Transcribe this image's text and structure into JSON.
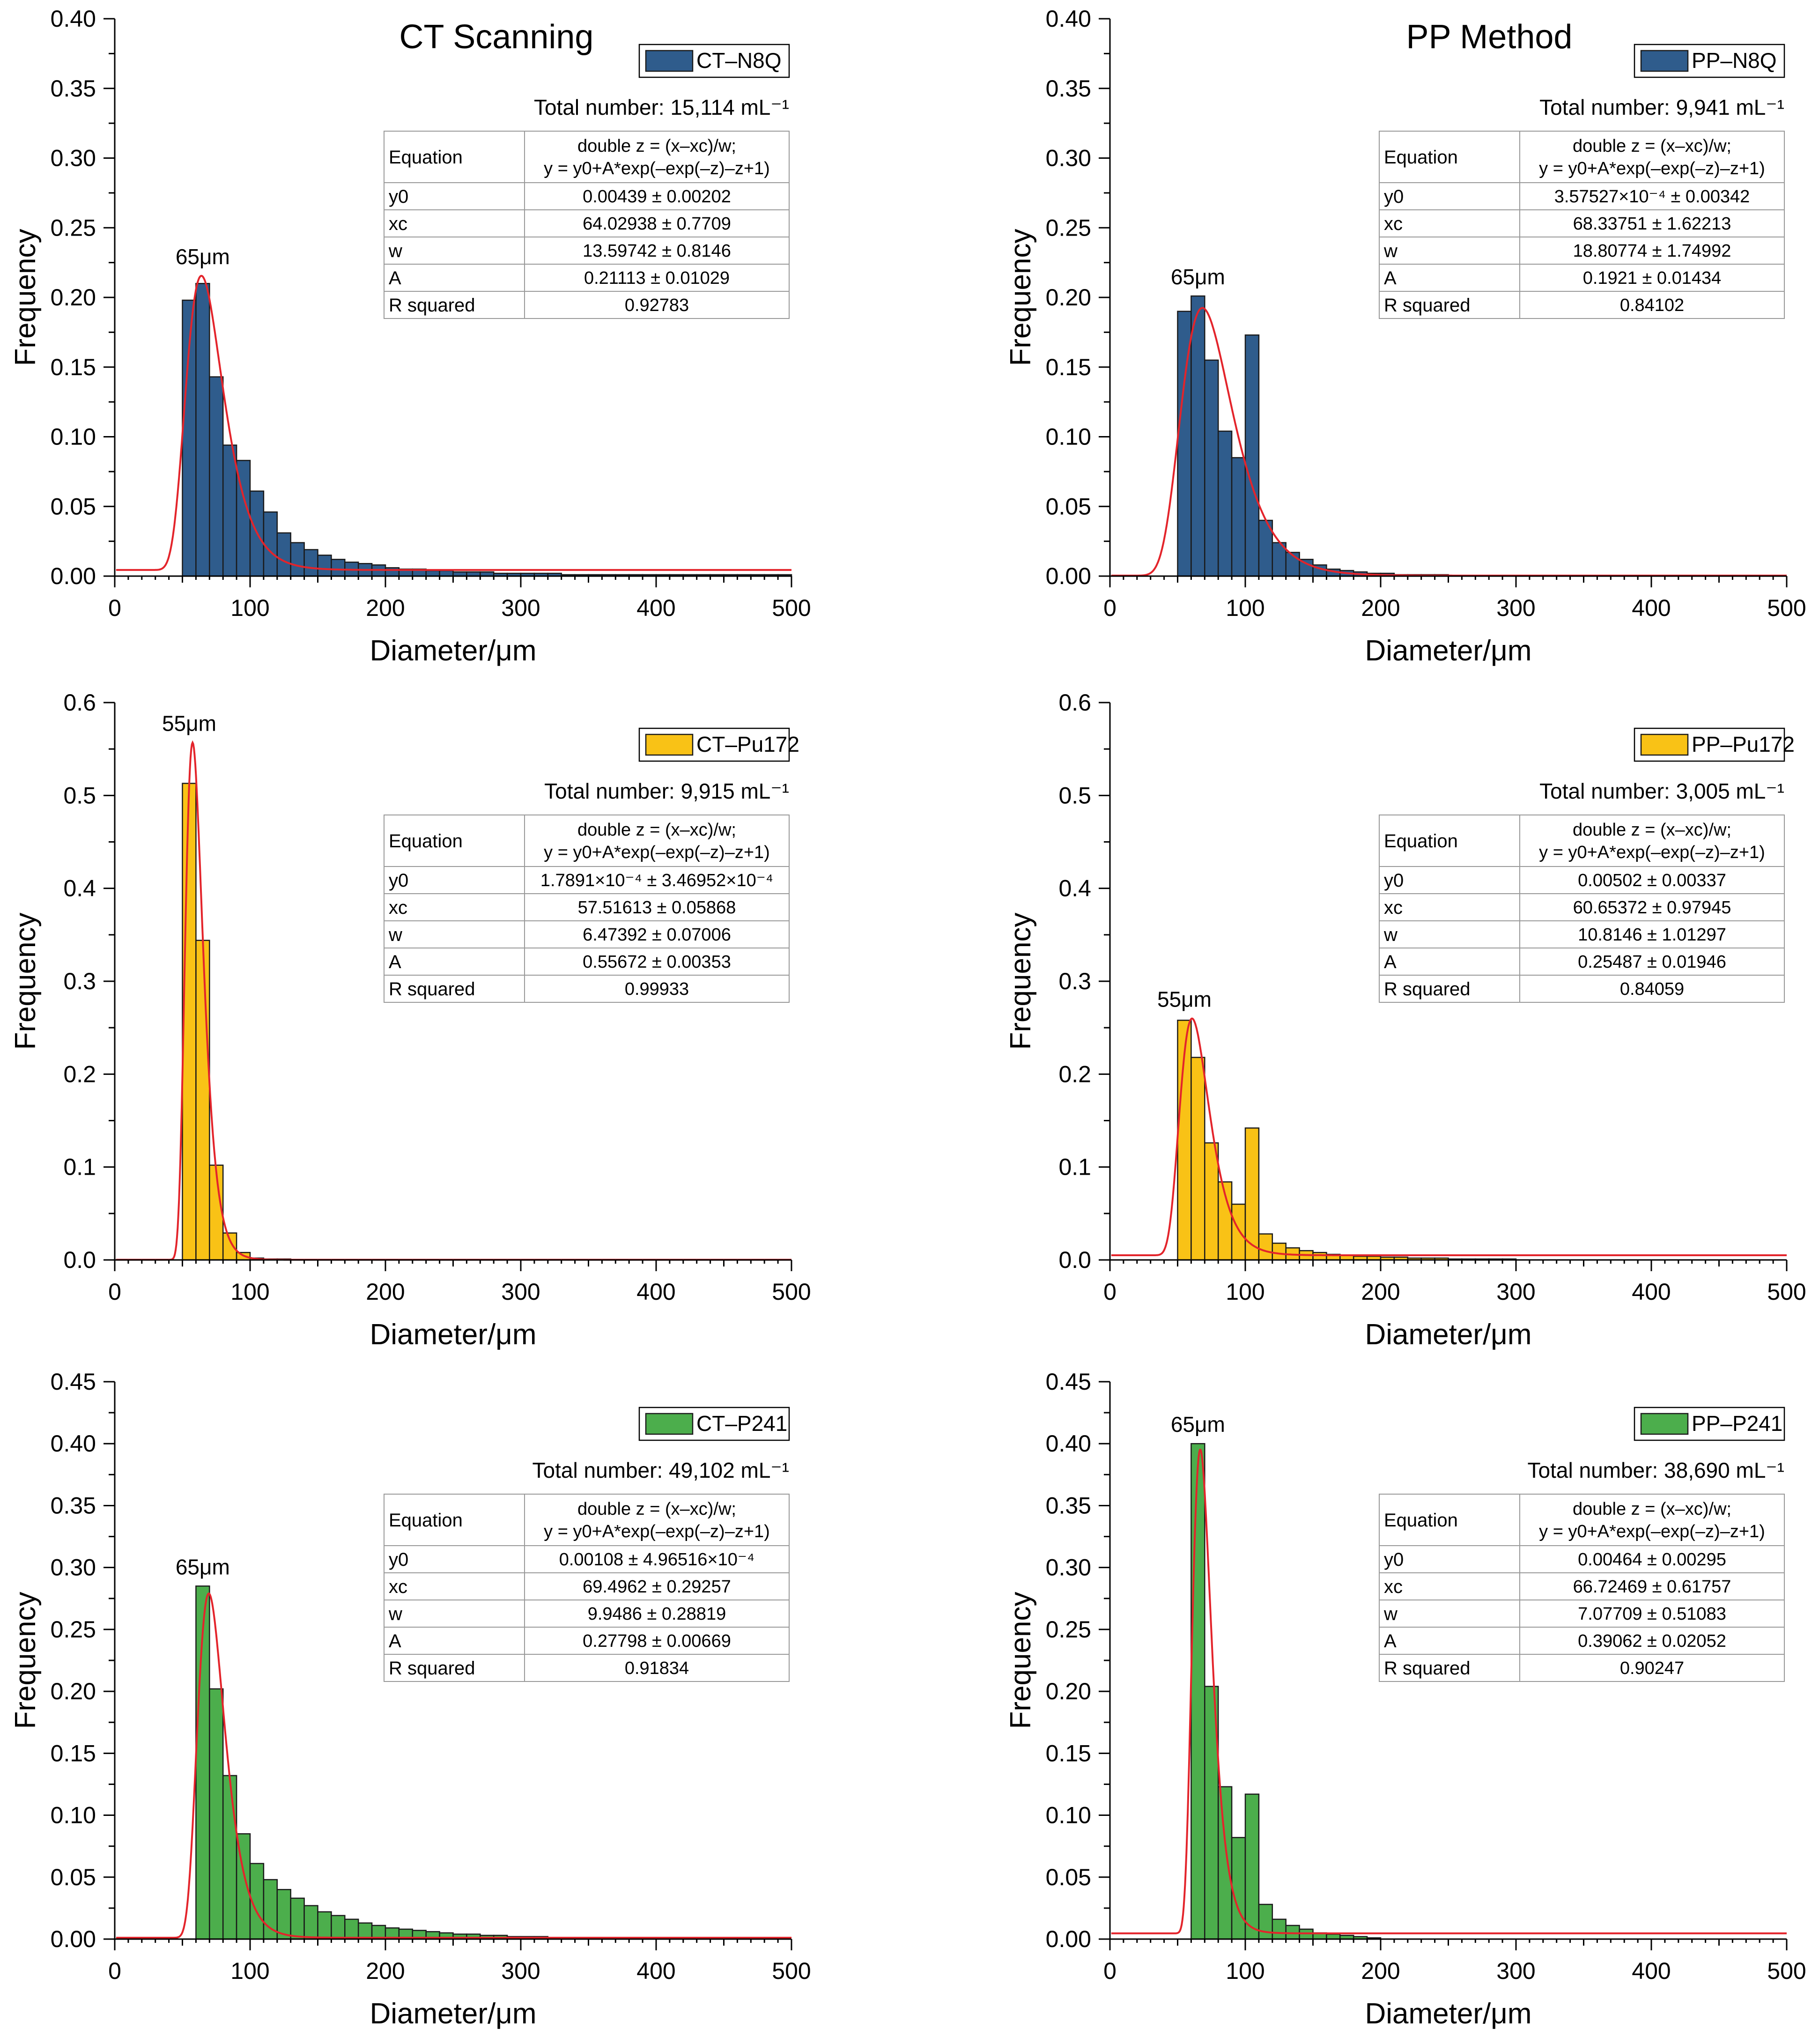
{
  "column_titles": [
    "CT Scanning",
    "PP Method"
  ],
  "colors": {
    "fit_curve": "#e3242b",
    "axis": "#000000",
    "table_border": "#999999"
  },
  "chart_data": [
    {
      "type": "bar",
      "legend": "CT–N8Q",
      "color": "#2f5c8c",
      "peak_label": "65μm",
      "total": "Total number: 15,114 mL⁻¹",
      "xlabel": "Diameter/μm",
      "ylabel": "Frequency",
      "xlim": [
        0,
        500
      ],
      "ylim": [
        0,
        0.4
      ],
      "yticks": [
        "0.00",
        "0.05",
        "0.10",
        "0.15",
        "0.20",
        "0.25",
        "0.30",
        "0.35",
        "0.40"
      ],
      "xticks": [
        "0",
        "100",
        "200",
        "300",
        "400",
        "500"
      ],
      "bin_start": 50,
      "bin_width": 10,
      "values": [
        0.198,
        0.21,
        0.143,
        0.094,
        0.083,
        0.061,
        0.046,
        0.031,
        0.024,
        0.019,
        0.015,
        0.012,
        0.01,
        0.009,
        0.008,
        0.006,
        0.005,
        0.005,
        0.004,
        0.004,
        0.003,
        0.003,
        0.003,
        0.002,
        0.002,
        0.002,
        0.002,
        0.002,
        0.001,
        0.001,
        0.001,
        0.001,
        0.001,
        0.001,
        0.001,
        0.001,
        0.001,
        0.001,
        0.001,
        0.001,
        0.001,
        0.001,
        0.001,
        0.001,
        0.001
      ],
      "fit": {
        "y0": 0.00439,
        "xc": 64.02938,
        "w": 13.59742,
        "A": 0.21113
      },
      "table": [
        [
          "Equation",
          "double z = (x–xc)/w;",
          "y = y0+A*exp(–exp(–z)–z+1)"
        ],
        [
          "y0",
          "0.00439 ± 0.00202"
        ],
        [
          "xc",
          "64.02938 ± 0.7709"
        ],
        [
          "w",
          "13.59742 ± 0.8146"
        ],
        [
          "A",
          "0.21113 ± 0.01029"
        ],
        [
          "R squared",
          "0.92783"
        ]
      ]
    },
    {
      "type": "bar",
      "legend": "PP–N8Q",
      "color": "#2f5c8c",
      "peak_label": "65μm",
      "total": "Total number: 9,941 mL⁻¹",
      "xlabel": "Diameter/μm",
      "ylabel": "Frequency",
      "xlim": [
        0,
        500
      ],
      "ylim": [
        0,
        0.4
      ],
      "yticks": [
        "0.00",
        "0.05",
        "0.10",
        "0.15",
        "0.20",
        "0.25",
        "0.30",
        "0.35",
        "0.40"
      ],
      "xticks": [
        "0",
        "100",
        "200",
        "300",
        "400",
        "500"
      ],
      "bin_start": 50,
      "bin_width": 10,
      "values": [
        0.19,
        0.201,
        0.155,
        0.104,
        0.085,
        0.173,
        0.04,
        0.024,
        0.017,
        0.012,
        0.008,
        0.005,
        0.004,
        0.003,
        0.002,
        0.002,
        0.001,
        0.001,
        0.001,
        0.001
      ],
      "fit": {
        "y0": 0.000357527,
        "xc": 68.33751,
        "w": 18.80774,
        "A": 0.1921
      },
      "table": [
        [
          "Equation",
          "double z = (x–xc)/w;",
          "y = y0+A*exp(–exp(–z)–z+1)"
        ],
        [
          "y0",
          "3.57527×10⁻⁴ ± 0.00342"
        ],
        [
          "xc",
          "68.33751 ± 1.62213"
        ],
        [
          "w",
          "18.80774 ± 1.74992"
        ],
        [
          "A",
          "0.1921 ± 0.01434"
        ],
        [
          "R squared",
          "0.84102"
        ]
      ]
    },
    {
      "type": "bar",
      "legend": "CT–Pu172",
      "color": "#f9c216",
      "peak_label": "55μm",
      "total": "Total number: 9,915 mL⁻¹",
      "xlabel": "Diameter/μm",
      "ylabel": "Frequency",
      "xlim": [
        0,
        500
      ],
      "ylim": [
        0,
        0.6
      ],
      "yticks": [
        "0.0",
        "0.1",
        "0.2",
        "0.3",
        "0.4",
        "0.5",
        "0.6"
      ],
      "xticks": [
        "0",
        "100",
        "200",
        "300",
        "400",
        "500"
      ],
      "bin_start": 50,
      "bin_width": 10,
      "values": [
        0.513,
        0.344,
        0.102,
        0.029,
        0.008,
        0.002,
        0.001,
        0.001
      ],
      "fit": {
        "y0": 0.00017891,
        "xc": 57.51613,
        "w": 6.47392,
        "A": 0.55672
      },
      "table": [
        [
          "Equation",
          "double z = (x–xc)/w;",
          "y = y0+A*exp(–exp(–z)–z+1)"
        ],
        [
          "y0",
          "1.7891×10⁻⁴ ± 3.46952×10⁻⁴"
        ],
        [
          "xc",
          "57.51613 ± 0.05868"
        ],
        [
          "w",
          "6.47392 ± 0.07006"
        ],
        [
          "A",
          "0.55672 ± 0.00353"
        ],
        [
          "R squared",
          "0.99933"
        ]
      ]
    },
    {
      "type": "bar",
      "legend": "PP–Pu172",
      "color": "#f9c216",
      "peak_label": "55μm",
      "total": "Total number: 3,005 mL⁻¹",
      "xlabel": "Diameter/μm",
      "ylabel": "Frequency",
      "xlim": [
        0,
        500
      ],
      "ylim": [
        0,
        0.6
      ],
      "yticks": [
        "0.0",
        "0.1",
        "0.2",
        "0.3",
        "0.4",
        "0.5",
        "0.6"
      ],
      "xticks": [
        "0",
        "100",
        "200",
        "300",
        "400",
        "500"
      ],
      "bin_start": 50,
      "bin_width": 10,
      "values": [
        0.258,
        0.218,
        0.126,
        0.084,
        0.06,
        0.142,
        0.028,
        0.018,
        0.013,
        0.01,
        0.008,
        0.006,
        0.005,
        0.004,
        0.004,
        0.003,
        0.003,
        0.002,
        0.002,
        0.002,
        0.001,
        0.001,
        0.001,
        0.001,
        0.001
      ],
      "fit": {
        "y0": 0.00502,
        "xc": 60.65372,
        "w": 10.8146,
        "A": 0.25487
      },
      "table": [
        [
          "Equation",
          "double z = (x–xc)/w;",
          "y = y0+A*exp(–exp(–z)–z+1)"
        ],
        [
          "y0",
          "0.00502 ± 0.00337"
        ],
        [
          "xc",
          "60.65372 ± 0.97945"
        ],
        [
          "w",
          "10.8146 ± 1.01297"
        ],
        [
          "A",
          "0.25487 ± 0.01946"
        ],
        [
          "R squared",
          "0.84059"
        ]
      ]
    },
    {
      "type": "bar",
      "legend": "CT–P241",
      "color": "#4cae4c",
      "peak_label": "65μm",
      "total": "Total number: 49,102 mL⁻¹",
      "xlabel": "Diameter/μm",
      "ylabel": "Frequency",
      "xlim": [
        0,
        500
      ],
      "ylim": [
        0,
        0.45
      ],
      "yticks": [
        "0.00",
        "0.05",
        "0.10",
        "0.15",
        "0.20",
        "0.25",
        "0.30",
        "0.35",
        "0.40",
        "0.45"
      ],
      "xticks": [
        "0",
        "100",
        "200",
        "300",
        "400",
        "500"
      ],
      "bin_start": 60,
      "bin_width": 10,
      "values": [
        0.285,
        0.202,
        0.132,
        0.085,
        0.061,
        0.048,
        0.04,
        0.033,
        0.027,
        0.022,
        0.019,
        0.016,
        0.013,
        0.011,
        0.009,
        0.008,
        0.007,
        0.006,
        0.005,
        0.004,
        0.004,
        0.003,
        0.003,
        0.002,
        0.002,
        0.002,
        0.001,
        0.001,
        0.001,
        0.001,
        0.001
      ],
      "fit": {
        "y0": 0.00108,
        "xc": 69.4962,
        "w": 9.9486,
        "A": 0.27798
      },
      "table": [
        [
          "Equation",
          "double z = (x–xc)/w;",
          "y = y0+A*exp(–exp(–z)–z+1)"
        ],
        [
          "y0",
          "0.00108 ± 4.96516×10⁻⁴"
        ],
        [
          "xc",
          "69.4962 ± 0.29257"
        ],
        [
          "w",
          "9.9486 ± 0.28819"
        ],
        [
          "A",
          "0.27798 ± 0.00669"
        ],
        [
          "R squared",
          "0.91834"
        ]
      ]
    },
    {
      "type": "bar",
      "legend": "PP–P241",
      "color": "#4cae4c",
      "peak_label": "65μm",
      "total": "Total number: 38,690 mL⁻¹",
      "xlabel": "Diameter/μm",
      "ylabel": "Frequency",
      "xlim": [
        0,
        500
      ],
      "ylim": [
        0,
        0.45
      ],
      "yticks": [
        "0.00",
        "0.05",
        "0.10",
        "0.15",
        "0.20",
        "0.25",
        "0.30",
        "0.35",
        "0.40",
        "0.45"
      ],
      "xticks": [
        "0",
        "100",
        "200",
        "300",
        "400",
        "500"
      ],
      "bin_start": 60,
      "bin_width": 10,
      "values": [
        0.4,
        0.204,
        0.123,
        0.082,
        0.117,
        0.028,
        0.016,
        0.011,
        0.008,
        0.005,
        0.004,
        0.003,
        0.002,
        0.001
      ],
      "fit": {
        "y0": 0.00464,
        "xc": 66.72469,
        "w": 7.07709,
        "A": 0.39062
      },
      "table": [
        [
          "Equation",
          "double z = (x–xc)/w;",
          "y = y0+A*exp(–exp(–z)–z+1)"
        ],
        [
          "y0",
          "0.00464 ± 0.00295"
        ],
        [
          "xc",
          "66.72469 ± 0.61757"
        ],
        [
          "w",
          "7.07709 ± 0.51083"
        ],
        [
          "A",
          "0.39062 ± 0.02052"
        ],
        [
          "R squared",
          "0.90247"
        ]
      ]
    }
  ]
}
